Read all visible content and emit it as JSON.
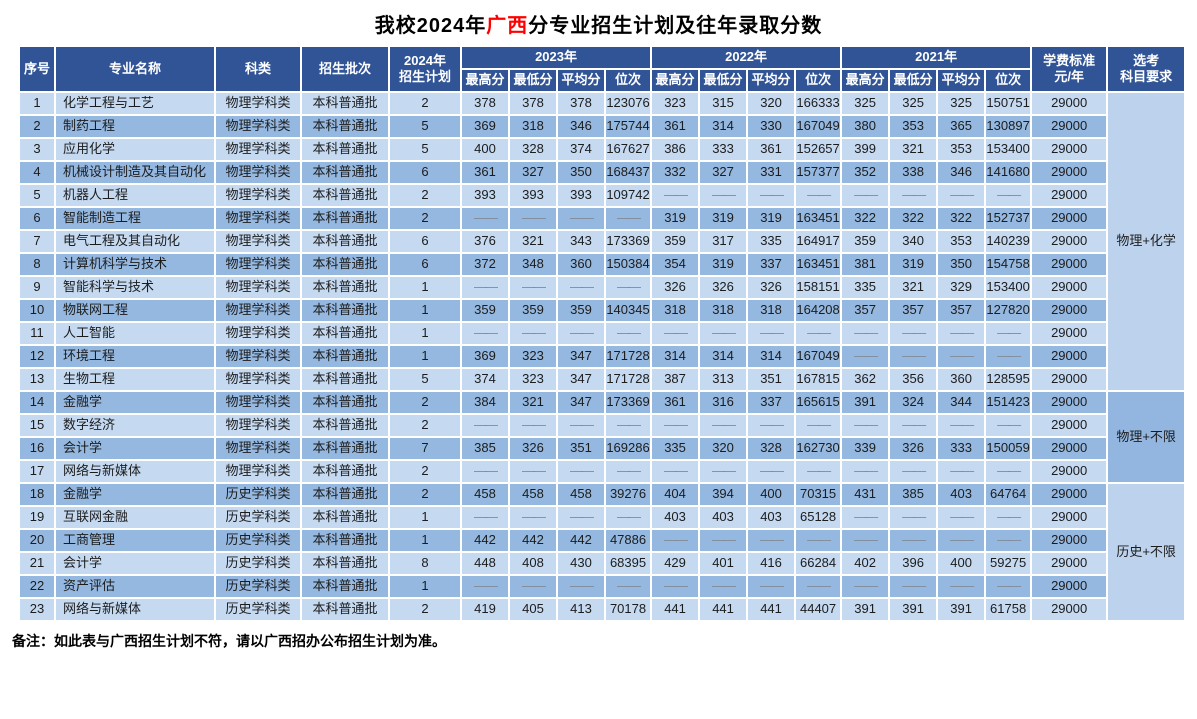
{
  "title": {
    "prefix": "我校2024年",
    "highlight": "广西",
    "suffix": "分专业招生计划及往年录取分数"
  },
  "note": "备注：如此表与广西招生计划不符，请以广西招办公布招生计划为准。",
  "colors": {
    "header_bg": "#305496",
    "row_light": "#c5d9f1",
    "row_dark": "#95b8e0",
    "group_light": "#bdd3ed",
    "group_dark": "#92b6df",
    "title_highlight": "#ff0000"
  },
  "table": {
    "header": {
      "seq": "序号",
      "major": "专业名称",
      "category": "科类",
      "batch": "招生批次",
      "plan_line1": "2024年",
      "plan_line2": "招生计划",
      "years": [
        "2023年",
        "2022年",
        "2021年"
      ],
      "score_cols": [
        "最高分",
        "最低分",
        "平均分",
        "位次"
      ],
      "fee_line1": "学费标准",
      "fee_line2": "元/年",
      "subject_line1": "选考",
      "subject_line2": "科目要求"
    },
    "dash": "——",
    "rows": [
      {
        "num": "1",
        "major": "化学工程与工艺",
        "category": "物理学科类",
        "batch": "本科普通批",
        "plan": "2",
        "y2023": [
          "378",
          "378",
          "378",
          "123076"
        ],
        "y2022": [
          "323",
          "315",
          "320",
          "166333"
        ],
        "y2021": [
          "325",
          "325",
          "325",
          "150751"
        ],
        "fee": "29000"
      },
      {
        "num": "2",
        "major": "制药工程",
        "category": "物理学科类",
        "batch": "本科普通批",
        "plan": "5",
        "y2023": [
          "369",
          "318",
          "346",
          "175744"
        ],
        "y2022": [
          "361",
          "314",
          "330",
          "167049"
        ],
        "y2021": [
          "380",
          "353",
          "365",
          "130897"
        ],
        "fee": "29000"
      },
      {
        "num": "3",
        "major": "应用化学",
        "category": "物理学科类",
        "batch": "本科普通批",
        "plan": "5",
        "y2023": [
          "400",
          "328",
          "374",
          "167627"
        ],
        "y2022": [
          "386",
          "333",
          "361",
          "152657"
        ],
        "y2021": [
          "399",
          "321",
          "353",
          "153400"
        ],
        "fee": "29000"
      },
      {
        "num": "4",
        "major": "机械设计制造及其自动化",
        "category": "物理学科类",
        "batch": "本科普通批",
        "plan": "6",
        "y2023": [
          "361",
          "327",
          "350",
          "168437"
        ],
        "y2022": [
          "332",
          "327",
          "331",
          "157377"
        ],
        "y2021": [
          "352",
          "338",
          "346",
          "141680"
        ],
        "fee": "29000"
      },
      {
        "num": "5",
        "major": "机器人工程",
        "category": "物理学科类",
        "batch": "本科普通批",
        "plan": "2",
        "y2023": [
          "393",
          "393",
          "393",
          "109742"
        ],
        "y2022": [
          "——",
          "——",
          "——",
          "——"
        ],
        "y2021": [
          "——",
          "——",
          "——",
          "——"
        ],
        "fee": "29000"
      },
      {
        "num": "6",
        "major": "智能制造工程",
        "category": "物理学科类",
        "batch": "本科普通批",
        "plan": "2",
        "y2023": [
          "——",
          "——",
          "——",
          "——"
        ],
        "y2022": [
          "319",
          "319",
          "319",
          "163451"
        ],
        "y2021": [
          "322",
          "322",
          "322",
          "152737"
        ],
        "fee": "29000"
      },
      {
        "num": "7",
        "major": "电气工程及其自动化",
        "category": "物理学科类",
        "batch": "本科普通批",
        "plan": "6",
        "y2023": [
          "376",
          "321",
          "343",
          "173369"
        ],
        "y2022": [
          "359",
          "317",
          "335",
          "164917"
        ],
        "y2021": [
          "359",
          "340",
          "353",
          "140239"
        ],
        "fee": "29000"
      },
      {
        "num": "8",
        "major": "计算机科学与技术",
        "category": "物理学科类",
        "batch": "本科普通批",
        "plan": "6",
        "y2023": [
          "372",
          "348",
          "360",
          "150384"
        ],
        "y2022": [
          "354",
          "319",
          "337",
          "163451"
        ],
        "y2021": [
          "381",
          "319",
          "350",
          "154758"
        ],
        "fee": "29000"
      },
      {
        "num": "9",
        "major": "智能科学与技术",
        "category": "物理学科类",
        "batch": "本科普通批",
        "plan": "1",
        "y2023": [
          "——",
          "——",
          "——",
          "——"
        ],
        "y2022": [
          "326",
          "326",
          "326",
          "158151"
        ],
        "y2021": [
          "335",
          "321",
          "329",
          "153400"
        ],
        "fee": "29000"
      },
      {
        "num": "10",
        "major": "物联网工程",
        "category": "物理学科类",
        "batch": "本科普通批",
        "plan": "1",
        "y2023": [
          "359",
          "359",
          "359",
          "140345"
        ],
        "y2022": [
          "318",
          "318",
          "318",
          "164208"
        ],
        "y2021": [
          "357",
          "357",
          "357",
          "127820"
        ],
        "fee": "29000"
      },
      {
        "num": "11",
        "major": "人工智能",
        "category": "物理学科类",
        "batch": "本科普通批",
        "plan": "1",
        "y2023": [
          "——",
          "——",
          "——",
          "——"
        ],
        "y2022": [
          "——",
          "——",
          "——",
          "——"
        ],
        "y2021": [
          "——",
          "——",
          "——",
          "——"
        ],
        "fee": "29000"
      },
      {
        "num": "12",
        "major": "环境工程",
        "category": "物理学科类",
        "batch": "本科普通批",
        "plan": "1",
        "y2023": [
          "369",
          "323",
          "347",
          "171728"
        ],
        "y2022": [
          "314",
          "314",
          "314",
          "167049"
        ],
        "y2021": [
          "——",
          "——",
          "——",
          "——"
        ],
        "fee": "29000"
      },
      {
        "num": "13",
        "major": "生物工程",
        "category": "物理学科类",
        "batch": "本科普通批",
        "plan": "5",
        "y2023": [
          "374",
          "323",
          "347",
          "171728"
        ],
        "y2022": [
          "387",
          "313",
          "351",
          "167815"
        ],
        "y2021": [
          "362",
          "356",
          "360",
          "128595"
        ],
        "fee": "29000"
      },
      {
        "num": "14",
        "major": "金融学",
        "category": "物理学科类",
        "batch": "本科普通批",
        "plan": "2",
        "y2023": [
          "384",
          "321",
          "347",
          "173369"
        ],
        "y2022": [
          "361",
          "316",
          "337",
          "165615"
        ],
        "y2021": [
          "391",
          "324",
          "344",
          "151423"
        ],
        "fee": "29000"
      },
      {
        "num": "15",
        "major": "数字经济",
        "category": "物理学科类",
        "batch": "本科普通批",
        "plan": "2",
        "y2023": [
          "——",
          "——",
          "——",
          "——"
        ],
        "y2022": [
          "——",
          "——",
          "——",
          "——"
        ],
        "y2021": [
          "——",
          "——",
          "——",
          "——"
        ],
        "fee": "29000"
      },
      {
        "num": "16",
        "major": "会计学",
        "category": "物理学科类",
        "batch": "本科普通批",
        "plan": "7",
        "y2023": [
          "385",
          "326",
          "351",
          "169286"
        ],
        "y2022": [
          "335",
          "320",
          "328",
          "162730"
        ],
        "y2021": [
          "339",
          "326",
          "333",
          "150059"
        ],
        "fee": "29000"
      },
      {
        "num": "17",
        "major": "网络与新媒体",
        "category": "物理学科类",
        "batch": "本科普通批",
        "plan": "2",
        "y2023": [
          "——",
          "——",
          "——",
          "——"
        ],
        "y2022": [
          "——",
          "——",
          "——",
          "——"
        ],
        "y2021": [
          "——",
          "——",
          "——",
          "——"
        ],
        "fee": "29000"
      },
      {
        "num": "18",
        "major": "金融学",
        "category": "历史学科类",
        "batch": "本科普通批",
        "plan": "2",
        "y2023": [
          "458",
          "458",
          "458",
          "39276"
        ],
        "y2022": [
          "404",
          "394",
          "400",
          "70315"
        ],
        "y2021": [
          "431",
          "385",
          "403",
          "64764"
        ],
        "fee": "29000"
      },
      {
        "num": "19",
        "major": "互联网金融",
        "category": "历史学科类",
        "batch": "本科普通批",
        "plan": "1",
        "y2023": [
          "——",
          "——",
          "——",
          "——"
        ],
        "y2022": [
          "403",
          "403",
          "403",
          "65128"
        ],
        "y2021": [
          "——",
          "——",
          "——",
          "——"
        ],
        "fee": "29000"
      },
      {
        "num": "20",
        "major": "工商管理",
        "category": "历史学科类",
        "batch": "本科普通批",
        "plan": "1",
        "y2023": [
          "442",
          "442",
          "442",
          "47886"
        ],
        "y2022": [
          "——",
          "——",
          "——",
          "——"
        ],
        "y2021": [
          "——",
          "——",
          "——",
          "——"
        ],
        "fee": "29000"
      },
      {
        "num": "21",
        "major": "会计学",
        "category": "历史学科类",
        "batch": "本科普通批",
        "plan": "8",
        "y2023": [
          "448",
          "408",
          "430",
          "68395"
        ],
        "y2022": [
          "429",
          "401",
          "416",
          "66284"
        ],
        "y2021": [
          "402",
          "396",
          "400",
          "59275"
        ],
        "fee": "29000"
      },
      {
        "num": "22",
        "major": "资产评估",
        "category": "历史学科类",
        "batch": "本科普通批",
        "plan": "1",
        "y2023": [
          "——",
          "——",
          "——",
          "——"
        ],
        "y2022": [
          "——",
          "——",
          "——",
          "——"
        ],
        "y2021": [
          "——",
          "——",
          "——",
          "——"
        ],
        "fee": "29000"
      },
      {
        "num": "23",
        "major": "网络与新媒体",
        "category": "历史学科类",
        "batch": "本科普通批",
        "plan": "2",
        "y2023": [
          "419",
          "405",
          "413",
          "70178"
        ],
        "y2022": [
          "441",
          "441",
          "441",
          "44407"
        ],
        "y2021": [
          "391",
          "391",
          "391",
          "61758"
        ],
        "fee": "29000"
      }
    ],
    "subject_groups": [
      {
        "label": "物理+化学",
        "start": 1,
        "span": 13,
        "shade": "light"
      },
      {
        "label": "物理+不限",
        "start": 14,
        "span": 4,
        "shade": "dark"
      },
      {
        "label": "历史+不限",
        "start": 18,
        "span": 6,
        "shade": "light"
      }
    ]
  }
}
